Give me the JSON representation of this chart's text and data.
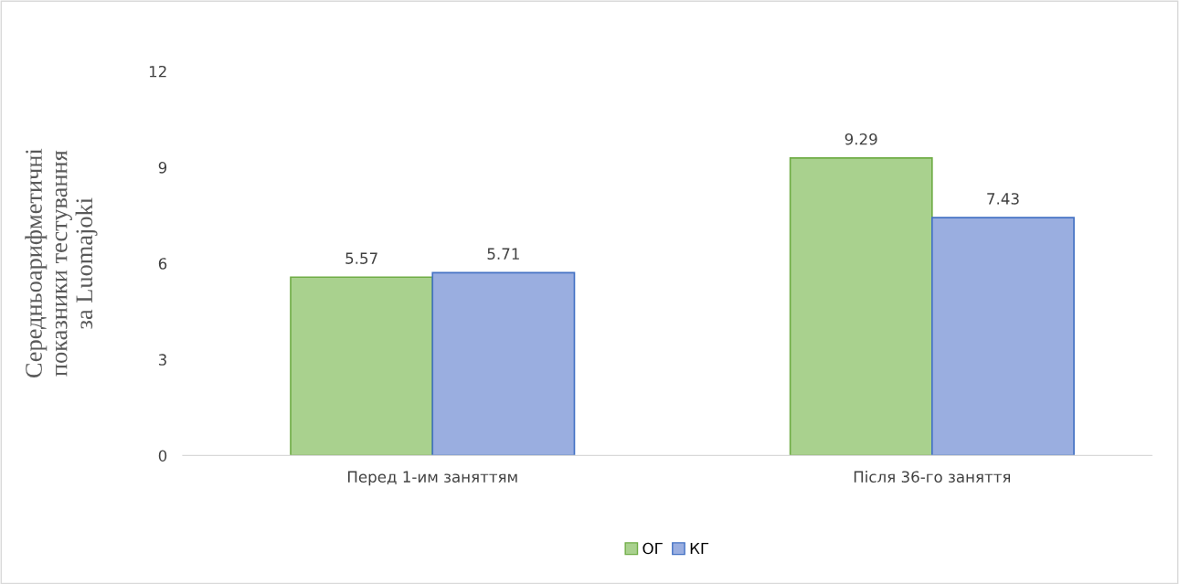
{
  "chart_data": {
    "type": "bar",
    "ylabel": "Середньоарифметичні\nпоказники тестування\nза Luomajoki",
    "categories": [
      "Перед 1-им заняттям",
      "Після 36-го заняття"
    ],
    "series": [
      {
        "name": "ОГ",
        "color": "#a9d18e",
        "values": [
          5.57,
          9.29
        ]
      },
      {
        "name": "КГ",
        "color": "#9aaee0",
        "values": [
          5.71,
          7.43
        ]
      }
    ],
    "ylim": [
      0,
      12
    ],
    "yticks": [
      0,
      3,
      6,
      9,
      12
    ],
    "data_labels": true,
    "grid": false,
    "legend": "bottom"
  }
}
